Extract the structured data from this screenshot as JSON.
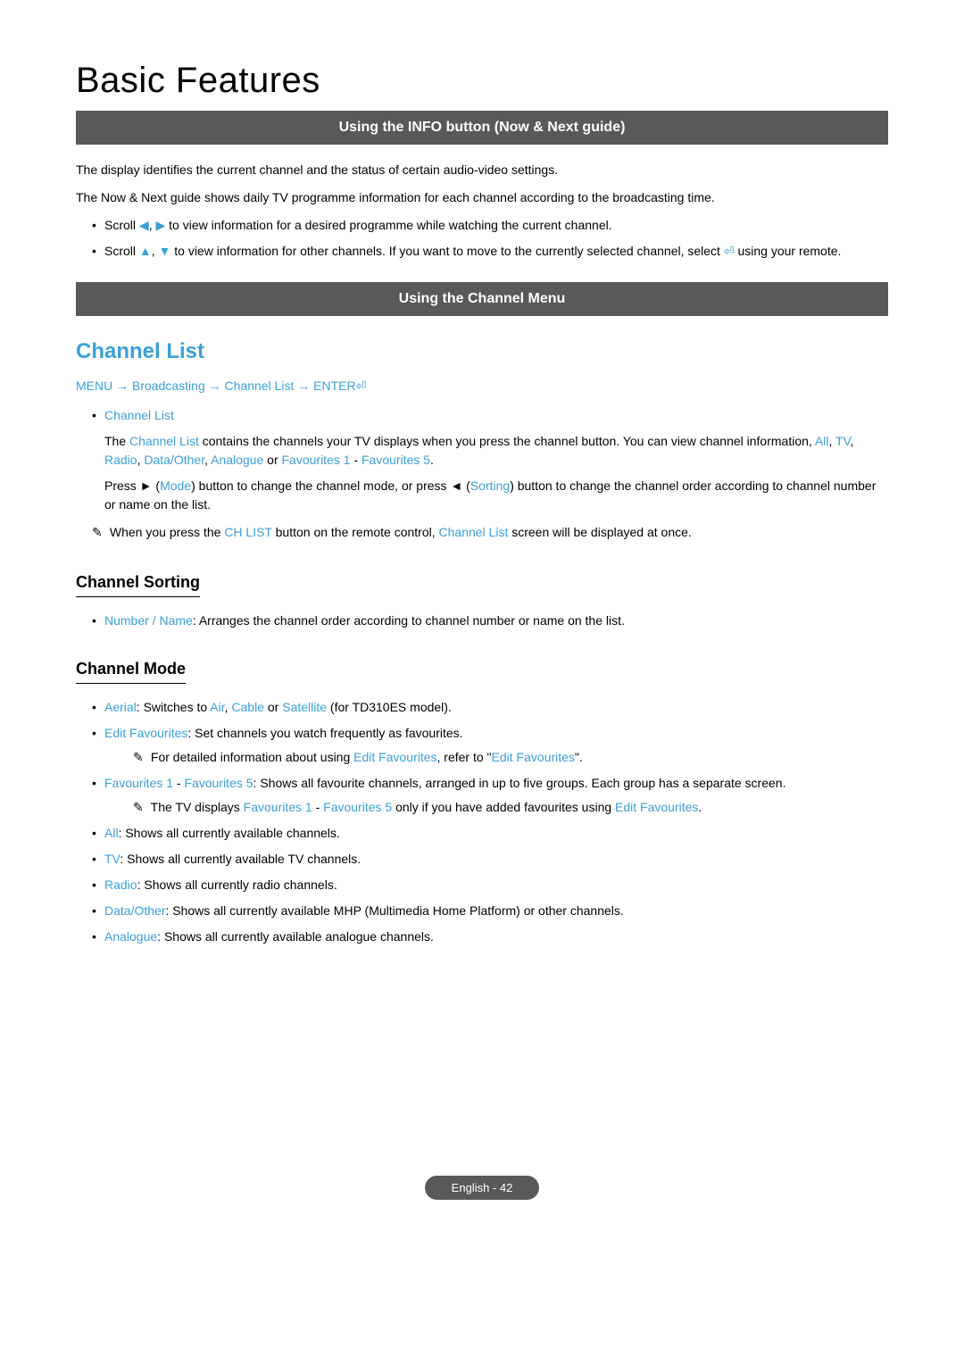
{
  "page_title": "Basic Features",
  "section1": {
    "bar": "Using the INFO button (Now & Next guide)",
    "p1": "The display identifies the current channel and the status of certain audio-video settings.",
    "p2": "The Now & Next guide shows daily TV programme information for each channel according to the broadcasting time.",
    "b1_pre": "Scroll ",
    "b1_mid": ", ",
    "b1_post": " to view information for a desired programme while watching the current channel.",
    "b2_pre": "Scroll ",
    "b2_mid": ", ",
    "b2_post1": " to view information for other channels. If you want to move to the currently selected channel, select ",
    "b2_post2": " using your remote."
  },
  "section2": {
    "bar": "Using the Channel Menu",
    "h2": "Channel List",
    "path": {
      "a": "MENU",
      "b": "Broadcasting",
      "c": "Channel List",
      "d": "ENTER"
    },
    "cl_label": "Channel List",
    "cl_p1a": "The ",
    "cl_p1b": "Channel List",
    "cl_p1c": " contains the channels your TV displays when you press the channel button. You can view channel information, ",
    "cl_all": "All",
    "cl_tv": "TV",
    "cl_radio": "Radio",
    "cl_data": "Data/Other",
    "cl_analogue": "Analogue",
    "cl_or": " or ",
    "cl_fav1": "Favourites 1",
    "cl_dash": " - ",
    "cl_fav5": "Favourites 5",
    "cl_p2a": "Press ► (",
    "cl_mode": "Mode",
    "cl_p2b": ") button to change the channel mode, or press ◄ (",
    "cl_sorting": "Sorting",
    "cl_p2c": ") button to change the channel order according to channel number or name on the list.",
    "note1a": "When you press the ",
    "note1b": "CH LIST",
    "note1c": " button on the remote control, ",
    "note1d": "Channel List",
    "note1e": " screen will be displayed at once."
  },
  "sorting": {
    "h3": "Channel Sorting",
    "item_label": "Number / Name",
    "item_text": ": Arranges the channel order according to channel number or name on the list."
  },
  "mode": {
    "h3": "Channel Mode",
    "aerial": {
      "label": "Aerial",
      "t1": ": Switches to ",
      "air": "Air",
      "t2": ", ",
      "cable": "Cable",
      "t3": " or ",
      "sat": "Satellite",
      "t4": " (for TD310ES model)."
    },
    "editfav": {
      "label": "Edit Favourites",
      "text": ": Set channels you watch frequently as favourites.",
      "note_a": "For detailed information about using ",
      "note_b": "Edit Favourites",
      "note_c": ", refer to \"",
      "note_d": "Edit Favourites",
      "note_e": "\"."
    },
    "favs": {
      "f1": "Favourites 1",
      "dash": " - ",
      "f5": "Favourites 5",
      "text": ": Shows all favourite channels, arranged in up to five groups. Each group has a separate screen.",
      "note_a": "The TV displays ",
      "note_b": "Favourites 1",
      "note_c": " - ",
      "note_d": "Favourites 5",
      "note_e": " only if you have added favourites using ",
      "note_f": "Edit Favourites",
      "note_g": "."
    },
    "all": {
      "label": "All",
      "text": ": Shows all currently available channels."
    },
    "tv": {
      "label": "TV",
      "text": ": Shows all currently available TV channels."
    },
    "radio": {
      "label": "Radio",
      "text": ": Shows all currently radio channels."
    },
    "data": {
      "label": "Data/Other",
      "text": ": Shows all currently available MHP (Multimedia Home Platform) or other channels."
    },
    "analogue": {
      "label": "Analogue",
      "text": ": Shows all currently available analogue channels."
    }
  },
  "footer": "English - 42",
  "glyphs": {
    "arrow_left": "◀",
    "arrow_right": "▶",
    "arrow_up": "▲",
    "arrow_down": "▼",
    "enter": "⏎",
    "note": "✎",
    "path_arrow": "→",
    "tri_right": "►",
    "tri_left": "◄"
  },
  "colors": {
    "accent": "#3aa0d8",
    "bar_bg": "#595959",
    "bar_fg": "#ffffff",
    "text": "#000000"
  }
}
